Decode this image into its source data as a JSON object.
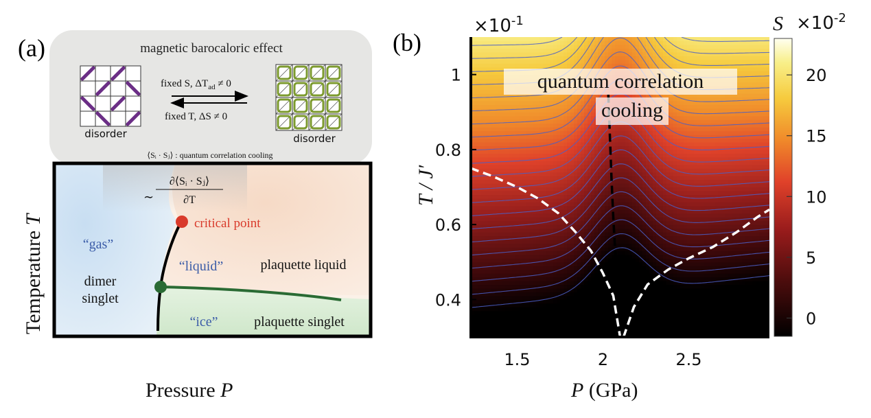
{
  "panel_a": {
    "label": "(a)",
    "box_title": "magnetic barocaloric effect",
    "left_label": "disorder",
    "right_label": "disorder",
    "arrow_top": "fixed S,  ΔTₐd ≠ 0",
    "arrow_top_text": "fixed S,  ΔT",
    "arrow_top_sub": "ad",
    "arrow_top_tail": " ≠ 0",
    "arrow_bottom": "fixed T,  ΔS ≠ 0",
    "correlation_caption": "⟨Sᵢ · Sⱼ⟩ : quantum correlation cooling",
    "corr_caption_text": "⟨Sᵢ · Sⱼ⟩ : quantum correlation cooling",
    "derivative_prefix": "∼",
    "derivative_numerator": "∂⟨Sᵢ · Sⱼ⟩",
    "derivative_denominator": "∂T",
    "critical_point": "critical point",
    "gas": "“gas”",
    "liquid": "“liquid”",
    "ice": "“ice”",
    "dimer_line1": "dimer",
    "dimer_line2": "singlet",
    "plaquette_liquid": "plaquette liquid",
    "plaquette_singlet": "plaquette singlet",
    "y_axis_label": "Temperature ",
    "y_axis_symbol": "T",
    "x_axis_label": "Pressure ",
    "x_axis_symbol": "P",
    "colors": {
      "gas_region": "#cfe4f4",
      "liquid_region": "#f8e2d3",
      "ice_region": "#d6ebd2",
      "critical_point": "#d93a2b",
      "triple_point": "#2a6b34",
      "plaquette_line": "#2a6b34",
      "dimer": "#6b2e86",
      "plaquette": "#7c9a2e",
      "text_blue": "#3b5ca8"
    }
  },
  "panel_b": {
    "label": "(b)",
    "annotation_line1": "quantum correlation",
    "annotation_line2": "cooling",
    "y_multiplier": "×10",
    "y_multiplier_exp": "-1",
    "cb_multiplier": "×10",
    "cb_multiplier_exp": "-2",
    "cb_symbol": "S",
    "ylabel": "T / J′",
    "xlabel_sym": "P",
    "xlabel_unit": " (GPa)"
  },
  "chart_data": {
    "type": "heatmap",
    "title": "",
    "xlabel": "P (GPa)",
    "ylabel": "T / J′ (×10⁻¹)",
    "xlim": [
      1.23,
      2.97
    ],
    "ylim": [
      0.3,
      1.1
    ],
    "xticks": [
      1.5,
      2,
      2.5
    ],
    "xtick_labels": [
      "1.5",
      "2",
      "2.5"
    ],
    "yticks": [
      0.4,
      0.6,
      0.8,
      1.0
    ],
    "ytick_labels": [
      "0.4",
      "0.6",
      "0.8",
      "1"
    ],
    "colorbar": {
      "label": "S (×10⁻²)",
      "range": [
        -1.5,
        23
      ],
      "ticks": [
        0,
        5,
        10,
        15,
        20
      ],
      "tick_labels": [
        "0",
        "5",
        "10",
        "15",
        "20"
      ]
    },
    "contour_levels": [
      -1,
      0,
      1,
      2,
      3,
      4,
      5,
      6,
      7,
      8,
      9,
      10,
      11,
      12,
      13,
      14,
      15,
      16,
      17,
      18,
      19,
      20,
      21,
      22
    ],
    "series": [
      {
        "name": "minimum line (black dashed)",
        "x": [
          2.11,
          2.1,
          2.09,
          2.08,
          2.07,
          2.06,
          2.05,
          2.04,
          2.03
        ],
        "y": [
          0.3,
          0.34,
          0.38,
          0.46,
          0.54,
          0.62,
          0.72,
          0.84,
          0.96
        ]
      },
      {
        "name": "left white dashed",
        "x": [
          1.23,
          1.35,
          1.5,
          1.62,
          1.74,
          1.84,
          1.93,
          2.0,
          2.06,
          2.1
        ],
        "y": [
          0.75,
          0.73,
          0.7,
          0.67,
          0.63,
          0.58,
          0.53,
          0.47,
          0.41,
          0.3
        ]
      },
      {
        "name": "right white dashed",
        "x": [
          2.12,
          2.18,
          2.26,
          2.38,
          2.5,
          2.64,
          2.78,
          2.9,
          2.97
        ],
        "y": [
          0.3,
          0.38,
          0.44,
          0.48,
          0.51,
          0.54,
          0.58,
          0.62,
          0.64
        ]
      }
    ]
  }
}
